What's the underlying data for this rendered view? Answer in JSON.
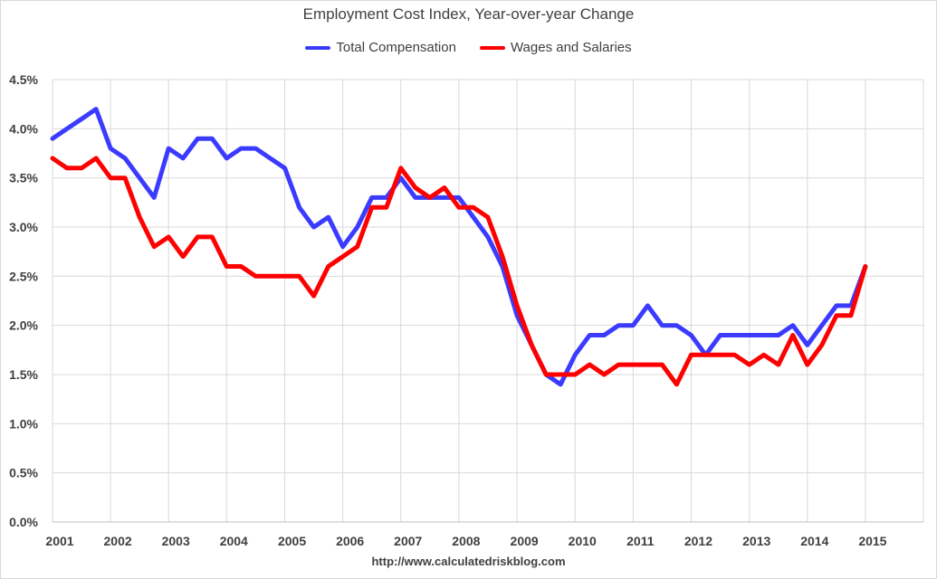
{
  "chart_data": {
    "type": "line",
    "title": "Employment Cost Index, Year-over-year Change",
    "xlabel": "",
    "ylabel": "",
    "y_ticks": [
      "0.0%",
      "0.5%",
      "1.0%",
      "1.5%",
      "2.0%",
      "2.5%",
      "3.0%",
      "3.5%",
      "4.0%",
      "4.5%"
    ],
    "ylim": [
      0,
      4.5
    ],
    "x_ticks": [
      "2001",
      "2002",
      "2003",
      "2004",
      "2005",
      "2006",
      "2007",
      "2008",
      "2009",
      "2010",
      "2011",
      "2012",
      "2013",
      "2014",
      "2015"
    ],
    "x_tick_dates": [
      "2001-01-01",
      "2002-01-01",
      "2003-01-01",
      "2004-01-01",
      "2005-01-01",
      "2006-01-01",
      "2007-01-01",
      "2008-01-01",
      "2009-01-01",
      "2010-01-01",
      "2011-01-01",
      "2012-01-01",
      "2013-01-01",
      "2014-01-01",
      "2015-01-01"
    ],
    "xlim": [
      "2001-01-01",
      "2016-01-01"
    ],
    "grid": "vertical and horizontal",
    "legend_position": "top-center",
    "x": [
      "2001-Q1",
      "2001-Q2",
      "2001-Q3",
      "2001-Q4",
      "2002-Q1",
      "2002-Q2",
      "2002-Q3",
      "2002-Q4",
      "2003-Q1",
      "2003-Q2",
      "2003-Q3",
      "2003-Q4",
      "2004-Q1",
      "2004-Q2",
      "2004-Q3",
      "2004-Q4",
      "2005-Q1",
      "2005-Q2",
      "2005-Q3",
      "2005-Q4",
      "2006-Q1",
      "2006-Q2",
      "2006-Q3",
      "2006-Q4",
      "2007-Q1",
      "2007-Q2",
      "2007-Q3",
      "2007-Q4",
      "2008-Q1",
      "2008-Q2",
      "2008-Q3",
      "2008-Q4",
      "2009-Q1",
      "2009-Q2",
      "2009-Q3",
      "2009-Q4",
      "2010-Q1",
      "2010-Q2",
      "2010-Q3",
      "2010-Q4",
      "2011-Q1",
      "2011-Q2",
      "2011-Q3",
      "2011-Q4",
      "2012-Q1",
      "2012-Q2",
      "2012-Q3",
      "2012-Q4",
      "2013-Q1",
      "2013-Q2",
      "2013-Q3",
      "2013-Q4",
      "2014-Q1",
      "2014-Q2",
      "2014-Q3",
      "2014-Q4",
      "2015-Q1"
    ],
    "series": [
      {
        "name": "Total Compensation",
        "color": "#3b3bff",
        "values": [
          3.9,
          4.0,
          4.1,
          4.2,
          3.8,
          3.7,
          3.5,
          3.3,
          3.8,
          3.7,
          3.9,
          3.9,
          3.7,
          3.8,
          3.8,
          3.7,
          3.6,
          3.2,
          3.0,
          3.1,
          2.8,
          3.0,
          3.3,
          3.3,
          3.5,
          3.3,
          3.3,
          3.3,
          3.3,
          3.1,
          2.9,
          2.6,
          2.1,
          1.8,
          1.5,
          1.4,
          1.7,
          1.9,
          1.9,
          2.0,
          2.0,
          2.2,
          2.0,
          2.0,
          1.9,
          1.7,
          1.9,
          1.9,
          1.9,
          1.9,
          1.9,
          2.0,
          1.8,
          2.0,
          2.2,
          2.2,
          2.6
        ]
      },
      {
        "name": "Wages and Salaries",
        "color": "#ff0000",
        "values": [
          3.7,
          3.6,
          3.6,
          3.7,
          3.5,
          3.5,
          3.1,
          2.8,
          2.9,
          2.7,
          2.9,
          2.9,
          2.6,
          2.6,
          2.5,
          2.5,
          2.5,
          2.5,
          2.3,
          2.6,
          2.7,
          2.8,
          3.2,
          3.2,
          3.6,
          3.4,
          3.3,
          3.4,
          3.2,
          3.2,
          3.1,
          2.7,
          2.2,
          1.8,
          1.5,
          1.5,
          1.5,
          1.6,
          1.5,
          1.6,
          1.6,
          1.6,
          1.6,
          1.4,
          1.7,
          1.7,
          1.7,
          1.7,
          1.6,
          1.7,
          1.6,
          1.9,
          1.6,
          1.8,
          2.1,
          2.1,
          2.6
        ]
      }
    ]
  },
  "source_text": "http://www.calculatedriskblog.com"
}
